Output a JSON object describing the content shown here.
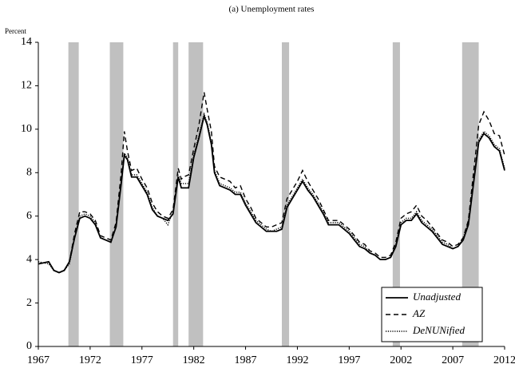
{
  "chart_data": {
    "type": "line",
    "title": "(a) Unemployment rates",
    "y_label": "Percent",
    "x": [
      1967,
      1968,
      1968.5,
      1969,
      1969.5,
      1970,
      1970.5,
      1971,
      1971.5,
      1972,
      1972.5,
      1973,
      1973.5,
      1974,
      1974.5,
      1975,
      1975.3,
      1975.6,
      1976,
      1976.5,
      1977,
      1977.5,
      1978,
      1978.5,
      1979,
      1979.5,
      1980,
      1980.5,
      1980.8,
      1981,
      1981.5,
      1982,
      1982.5,
      1983,
      1983.3,
      1983.7,
      1984,
      1984.5,
      1985,
      1985.5,
      1986,
      1986.5,
      1987,
      1987.5,
      1988,
      1988.5,
      1989,
      1989.5,
      1990,
      1990.5,
      1991,
      1991.5,
      1992,
      1992.5,
      1993,
      1993.5,
      1994,
      1994.5,
      1995,
      1995.5,
      1996,
      1996.5,
      1997,
      1997.5,
      1998,
      1998.5,
      1999,
      1999.5,
      2000,
      2000.5,
      2001,
      2001.5,
      2002,
      2002.5,
      2003,
      2003.5,
      2004,
      2004.5,
      2005,
      2005.5,
      2006,
      2006.5,
      2007,
      2007.5,
      2008,
      2008.5,
      2009,
      2009.5,
      2010,
      2010.5,
      2011,
      2011.5,
      2012
    ],
    "series": [
      {
        "name": "Unadjusted",
        "color": "#000000",
        "line_style": "solid",
        "values": [
          3.8,
          3.9,
          3.5,
          3.4,
          3.5,
          3.9,
          5.0,
          5.9,
          6.0,
          5.9,
          5.6,
          5.0,
          4.9,
          4.8,
          5.5,
          7.5,
          8.8,
          8.6,
          7.8,
          7.8,
          7.4,
          7.0,
          6.3,
          6.0,
          5.9,
          5.8,
          6.1,
          7.8,
          7.3,
          7.3,
          7.3,
          8.7,
          9.6,
          10.6,
          10.2,
          9.3,
          8.0,
          7.4,
          7.3,
          7.2,
          7.0,
          7.0,
          6.5,
          6.1,
          5.7,
          5.5,
          5.3,
          5.3,
          5.3,
          5.4,
          6.4,
          6.8,
          7.2,
          7.6,
          7.2,
          6.9,
          6.5,
          6.1,
          5.6,
          5.6,
          5.6,
          5.4,
          5.2,
          4.9,
          4.6,
          4.5,
          4.3,
          4.2,
          4.0,
          4.0,
          4.1,
          4.6,
          5.6,
          5.8,
          5.8,
          6.1,
          5.7,
          5.5,
          5.3,
          5.0,
          4.7,
          4.6,
          4.5,
          4.6,
          4.9,
          5.6,
          7.5,
          9.4,
          9.8,
          9.6,
          9.2,
          9.0,
          8.1
        ]
      },
      {
        "name": "AZ",
        "color": "#000000",
        "line_style": "dashed",
        "values": [
          3.8,
          3.9,
          3.5,
          3.4,
          3.5,
          3.9,
          5.2,
          6.2,
          6.2,
          6.1,
          5.8,
          5.1,
          5.0,
          4.9,
          5.7,
          8.0,
          9.9,
          9.0,
          8.1,
          8.2,
          7.7,
          7.3,
          6.6,
          6.2,
          6.0,
          5.9,
          6.3,
          8.2,
          7.7,
          7.8,
          7.9,
          9.1,
          10.2,
          11.7,
          10.9,
          9.9,
          8.3,
          7.8,
          7.7,
          7.6,
          7.3,
          7.4,
          6.8,
          6.4,
          5.9,
          5.7,
          5.5,
          5.5,
          5.6,
          5.7,
          6.8,
          7.2,
          7.6,
          8.1,
          7.6,
          7.2,
          6.8,
          6.3,
          5.8,
          5.8,
          5.8,
          5.6,
          5.4,
          5.1,
          4.8,
          4.7,
          4.4,
          4.3,
          4.1,
          4.1,
          4.2,
          4.8,
          5.9,
          6.1,
          6.2,
          6.5,
          6.0,
          5.8,
          5.5,
          5.2,
          4.9,
          4.8,
          4.6,
          4.7,
          5.0,
          5.8,
          8.0,
          10.2,
          10.8,
          10.4,
          9.8,
          9.7,
          8.8
        ]
      },
      {
        "name": "DeNUNified",
        "color": "#000000",
        "line_style": "dotted",
        "values": [
          3.9,
          3.8,
          3.5,
          3.4,
          3.5,
          3.8,
          5.0,
          6.0,
          6.1,
          6.0,
          5.7,
          5.0,
          4.9,
          4.8,
          5.5,
          7.6,
          8.9,
          8.7,
          7.9,
          7.9,
          7.5,
          7.1,
          6.4,
          6.0,
          5.9,
          5.6,
          6.2,
          7.9,
          7.5,
          7.5,
          7.5,
          8.8,
          9.7,
          10.7,
          10.3,
          9.4,
          8.1,
          7.5,
          7.4,
          7.3,
          7.1,
          7.1,
          6.6,
          6.2,
          5.8,
          5.6,
          5.4,
          5.3,
          5.4,
          5.5,
          6.5,
          6.9,
          7.3,
          7.7,
          7.3,
          7.0,
          6.6,
          6.2,
          5.7,
          5.7,
          5.7,
          5.5,
          5.3,
          5.0,
          4.7,
          4.6,
          4.3,
          4.2,
          4.0,
          4.0,
          4.1,
          4.7,
          5.7,
          5.9,
          5.9,
          6.2,
          5.8,
          5.6,
          5.4,
          5.1,
          4.8,
          4.7,
          4.5,
          4.6,
          5.0,
          5.7,
          7.6,
          9.5,
          9.9,
          9.7,
          9.3,
          9.1,
          8.2
        ]
      }
    ],
    "shaded_periods": [
      [
        1969.9,
        1970.9
      ],
      [
        1973.9,
        1975.2
      ],
      [
        1980.0,
        1980.5
      ],
      [
        1981.5,
        1982.9
      ],
      [
        1990.5,
        1991.2
      ],
      [
        2001.2,
        2001.9
      ],
      [
        2007.9,
        2009.5
      ]
    ],
    "shade_color": "#c0c0c0",
    "xlim": [
      1967,
      2012
    ],
    "ylim": [
      0,
      14
    ],
    "xticks": [
      1967,
      1972,
      1977,
      1982,
      1987,
      1992,
      1997,
      2002,
      2007,
      2012
    ],
    "yticks": [
      0,
      2,
      4,
      6,
      8,
      10,
      12,
      14
    ],
    "legend": "lower right"
  }
}
